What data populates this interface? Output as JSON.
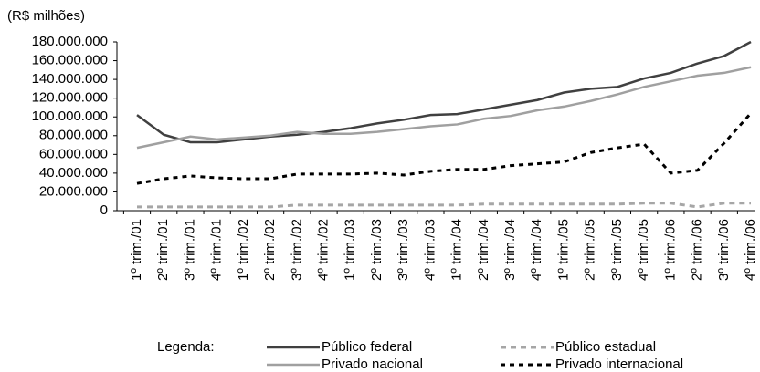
{
  "chart_data": {
    "type": "line",
    "y_label": "(R$ milhões)",
    "legend_title": "Legenda:",
    "categories": [
      "1º trim./01",
      "2º trim./01",
      "3º trim./01",
      "4º trim./01",
      "1º trim./02",
      "2º trim./02",
      "3º trim./02",
      "4º trim./02",
      "1º trim./03",
      "2º trim./03",
      "3º trim./03",
      "4º trim./03",
      "1º trim./04",
      "2º trim./04",
      "3º trim./04",
      "4º trim./04",
      "1º trim./05",
      "2º trim./05",
      "3º trim./05",
      "4º trim./05",
      "1º trim./06",
      "2º trim./06",
      "3º trim./06",
      "4º trim./06"
    ],
    "series": [
      {
        "name": "Público federal",
        "color": "#404040",
        "dash": "none",
        "values": [
          102000000,
          81000000,
          73000000,
          73000000,
          76000000,
          79000000,
          81000000,
          84000000,
          88000000,
          93000000,
          97000000,
          102000000,
          103000000,
          108000000,
          113000000,
          118000000,
          126000000,
          130000000,
          132000000,
          141000000,
          147000000,
          157000000,
          165000000,
          180000000
        ]
      },
      {
        "name": "Público estadual",
        "color": "#a6a6a6",
        "dash": "6,5",
        "values": [
          4000000,
          4000000,
          4000000,
          4000000,
          4000000,
          4000000,
          6000000,
          6000000,
          6000000,
          6000000,
          6000000,
          6000000,
          6000000,
          7000000,
          7000000,
          7000000,
          7000000,
          7000000,
          7000000,
          8000000,
          8000000,
          4000000,
          8000000,
          8000000
        ]
      },
      {
        "name": "Privado nacional",
        "color": "#a0a0a0",
        "dash": "none",
        "values": [
          67000000,
          73000000,
          79000000,
          76000000,
          78000000,
          80000000,
          84000000,
          82000000,
          82000000,
          84000000,
          87000000,
          90000000,
          92000000,
          98000000,
          101000000,
          107000000,
          111000000,
          117000000,
          124000000,
          132000000,
          138000000,
          144000000,
          147000000,
          153000000
        ]
      },
      {
        "name": "Privado internacional",
        "color": "#000000",
        "dash": "5,5",
        "values": [
          29000000,
          34000000,
          37000000,
          35000000,
          34000000,
          34000000,
          39000000,
          39000000,
          39000000,
          40000000,
          38000000,
          42000000,
          44000000,
          44000000,
          48000000,
          50000000,
          52000000,
          62000000,
          67000000,
          71000000,
          40000000,
          43000000,
          72000000,
          104000000
        ]
      }
    ],
    "ylim": [
      0,
      180000000
    ],
    "yticks": [
      {
        "value": 0,
        "label": "0"
      },
      {
        "value": 20000000,
        "label": "20.000.000"
      },
      {
        "value": 40000000,
        "label": "40.000.000"
      },
      {
        "value": 60000000,
        "label": "60.000.000"
      },
      {
        "value": 80000000,
        "label": "80.000.000"
      },
      {
        "value": 100000000,
        "label": "100.000.000"
      },
      {
        "value": 120000000,
        "label": "120.000.000"
      },
      {
        "value": 140000000,
        "label": "140.000.000"
      },
      {
        "value": 160000000,
        "label": "160.000.000"
      },
      {
        "value": 180000000,
        "label": "180.000.000"
      }
    ]
  }
}
